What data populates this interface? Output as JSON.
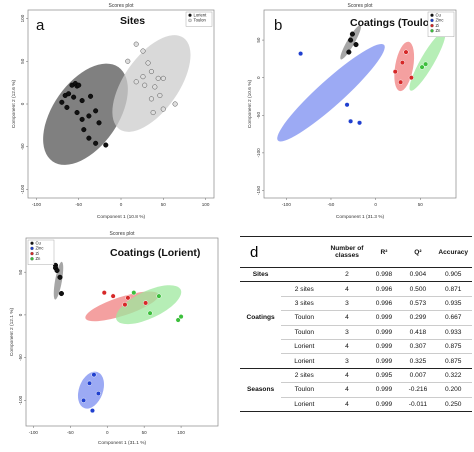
{
  "chart_data": [
    {
      "type": "scatter",
      "panel_letter": "a",
      "title": "Scores plot",
      "inner_title": "Sites",
      "xlabel": "Component 1 (10.8 %)",
      "ylabel": "Component 2 (12.6 %)",
      "xlim": [
        -110,
        110
      ],
      "ylim": [
        -110,
        110
      ],
      "xticks": [
        -100,
        -50,
        0,
        50,
        100
      ],
      "yticks": [
        -100,
        -50,
        0,
        50,
        100
      ],
      "legend": "top-right",
      "series": [
        {
          "name": "Lorient",
          "color": "#111111",
          "ellipse_color": "#555555",
          "ellipse": {
            "cx": -42,
            "cy": -12,
            "rx": 68,
            "ry": 38,
            "angle_deg": -55
          },
          "points": [
            [
              -58,
              22
            ],
            [
              -54,
              24
            ],
            [
              -52,
              21
            ],
            [
              -50,
              22
            ],
            [
              -66,
              10
            ],
            [
              -62,
              12
            ],
            [
              -56,
              8
            ],
            [
              -46,
              4
            ],
            [
              -36,
              9
            ],
            [
              -70,
              2
            ],
            [
              -64,
              -4
            ],
            [
              -52,
              -10
            ],
            [
              -46,
              -18
            ],
            [
              -38,
              -14
            ],
            [
              -30,
              -8
            ],
            [
              -44,
              -30
            ],
            [
              -38,
              -40
            ],
            [
              -30,
              -46
            ],
            [
              -18,
              -48
            ],
            [
              -26,
              -22
            ]
          ]
        },
        {
          "name": "Toulon",
          "color": "#dddddd",
          "ellipse_color": "#cccccc",
          "ellipse": {
            "cx": 36,
            "cy": 24,
            "rx": 66,
            "ry": 32,
            "angle_deg": -55
          },
          "points": [
            [
              18,
              70
            ],
            [
              26,
              62
            ],
            [
              8,
              50
            ],
            [
              32,
              48
            ],
            [
              36,
              38
            ],
            [
              26,
              32
            ],
            [
              44,
              30
            ],
            [
              50,
              30
            ],
            [
              28,
              22
            ],
            [
              40,
              20
            ],
            [
              18,
              26
            ],
            [
              46,
              10
            ],
            [
              36,
              6
            ],
            [
              64,
              0
            ],
            [
              50,
              -6
            ],
            [
              38,
              -10
            ]
          ]
        }
      ]
    },
    {
      "type": "scatter",
      "panel_letter": "b",
      "title": "Scores plot",
      "inner_title": "Coatings (Toulon)",
      "xlabel": "Component 1 (31.3 %)",
      "ylabel": "Component 2 (10.6 %)",
      "xlim": [
        -125,
        90
      ],
      "ylim": [
        -160,
        90
      ],
      "xticks": [
        -100,
        -50,
        0,
        50
      ],
      "yticks": [
        -150,
        -100,
        -50,
        0,
        50
      ],
      "legend": "top-right",
      "series": [
        {
          "name": "Cu",
          "color": "#111111",
          "ellipse_color": "#888888",
          "ellipse": {
            "cx": -28,
            "cy": 47,
            "rx": 22,
            "ry": 5,
            "angle_deg": -60
          },
          "points": [
            [
              -26,
              58
            ],
            [
              -28,
              50
            ],
            [
              -22,
              44
            ],
            [
              -30,
              34
            ]
          ]
        },
        {
          "name": "Zinc",
          "color": "#1f3fcf",
          "ellipse_color": "#7b8df0",
          "ellipse": {
            "cx": -50,
            "cy": -20,
            "rx": 80,
            "ry": 17,
            "angle_deg": -42
          },
          "points": [
            [
              -84,
              32
            ],
            [
              -32,
              -36
            ],
            [
              -28,
              -58
            ],
            [
              -18,
              -60
            ]
          ]
        },
        {
          "name": "Zi",
          "color": "#d62828",
          "ellipse_color": "#f08080",
          "ellipse": {
            "cx": 32,
            "cy": 15,
            "rx": 28,
            "ry": 12,
            "angle_deg": -80
          },
          "points": [
            [
              34,
              34
            ],
            [
              30,
              20
            ],
            [
              22,
              8
            ],
            [
              40,
              0
            ],
            [
              28,
              -6
            ]
          ]
        },
        {
          "name": "Zn",
          "color": "#3cbf3c",
          "ellipse_color": "#9ee89e",
          "ellipse": {
            "cx": 58,
            "cy": 22,
            "rx": 38,
            "ry": 9,
            "angle_deg": -60
          },
          "points": [
            [
              56,
              18
            ],
            [
              52,
              14
            ]
          ]
        }
      ]
    },
    {
      "type": "scatter",
      "panel_letter": "c",
      "title": "Scores plot",
      "inner_title": "Coatings (Lorient)",
      "xlabel": "Component 1 (31.1 %)",
      "ylabel": "Component 2 (12.1 %)",
      "xlim": [
        -110,
        150
      ],
      "ylim": [
        -130,
        90
      ],
      "xticks": [
        -100,
        -50,
        0,
        50,
        100
      ],
      "yticks": [
        -100,
        -50,
        0,
        50
      ],
      "legend": "top-left",
      "series": [
        {
          "name": "Cu",
          "color": "#111111",
          "ellipse_color": "#888888",
          "ellipse": {
            "cx": -66,
            "cy": 40,
            "rx": 26,
            "ry": 4,
            "angle_deg": -80
          },
          "points": [
            [
              -70,
              58
            ],
            [
              -70,
              55
            ],
            [
              -68,
              52
            ],
            [
              -64,
              44
            ],
            [
              -62,
              25
            ]
          ]
        },
        {
          "name": "Zinc",
          "color": "#1f3fcf",
          "ellipse_color": "#7b8df0",
          "ellipse": {
            "cx": -22,
            "cy": -88,
            "rx": 26,
            "ry": 14,
            "angle_deg": -70
          },
          "points": [
            [
              -18,
              -70
            ],
            [
              -24,
              -80
            ],
            [
              -12,
              -92
            ],
            [
              -32,
              -100
            ],
            [
              -20,
              -112
            ]
          ]
        },
        {
          "name": "Zi",
          "color": "#d62828",
          "ellipse_color": "#f08080",
          "ellipse": {
            "cx": 20,
            "cy": 10,
            "rx": 52,
            "ry": 11,
            "angle_deg": -18
          },
          "points": [
            [
              -4,
              26
            ],
            [
              8,
              22
            ],
            [
              28,
              20
            ],
            [
              24,
              12
            ],
            [
              52,
              14
            ]
          ]
        },
        {
          "name": "Zn",
          "color": "#3cbf3c",
          "ellipse_color": "#9ee89e",
          "ellipse": {
            "cx": 56,
            "cy": 12,
            "rx": 48,
            "ry": 16,
            "angle_deg": -25
          },
          "points": [
            [
              36,
              26
            ],
            [
              70,
              22
            ],
            [
              96,
              -6
            ],
            [
              100,
              -2
            ],
            [
              58,
              2
            ]
          ]
        }
      ]
    },
    {
      "type": "table",
      "panel_letter": "d",
      "columns": [
        "",
        "",
        "Number of classes",
        "R²",
        "Q²",
        "Accuracy"
      ],
      "rows": [
        {
          "group": "Sites",
          "sub": "",
          "classes": "2",
          "r2": "0.998",
          "q2": "0.904",
          "acc": "0.905"
        },
        {
          "group": "",
          "sub": "2 sites",
          "classes": "4",
          "r2": "0.996",
          "q2": "0.500",
          "acc": "0.871"
        },
        {
          "group": "",
          "sub": "3 sites",
          "classes": "3",
          "r2": "0.996",
          "q2": "0.573",
          "acc": "0.935"
        },
        {
          "group": "Coatings",
          "sub": "Toulon",
          "classes": "4",
          "r2": "0.999",
          "q2": "0.299",
          "acc": "0.667"
        },
        {
          "group": "",
          "sub": "Toulon",
          "classes": "3",
          "r2": "0.999",
          "q2": "0.418",
          "acc": "0.933"
        },
        {
          "group": "",
          "sub": "Lorient",
          "classes": "4",
          "r2": "0.999",
          "q2": "0.307",
          "acc": "0.875"
        },
        {
          "group": "",
          "sub": "Lorient",
          "classes": "3",
          "r2": "0.999",
          "q2": "0.325",
          "acc": "0.875"
        },
        {
          "group": "",
          "sub": "2 sites",
          "classes": "4",
          "r2": "0.995",
          "q2": "0.007",
          "acc": "0.322"
        },
        {
          "group": "Seasons",
          "sub": "Toulon",
          "classes": "4",
          "r2": "0.999",
          "q2": "-0.216",
          "acc": "0.200"
        },
        {
          "group": "",
          "sub": "Lorient",
          "classes": "4",
          "r2": "0.999",
          "q2": "-0.011",
          "acc": "0.250"
        }
      ]
    }
  ]
}
